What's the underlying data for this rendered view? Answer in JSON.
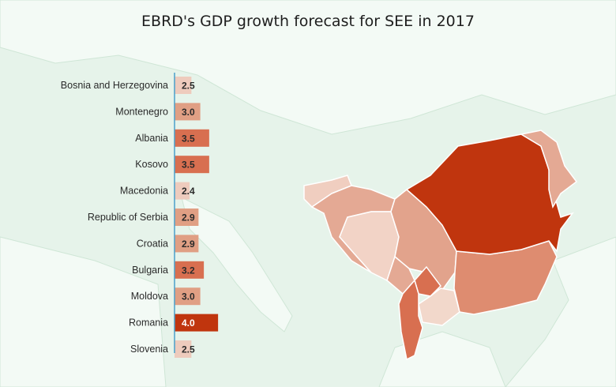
{
  "chart_data": {
    "type": "bar",
    "orientation": "horizontal",
    "title": "EBRD's GDP growth forecast for SEE in 2017",
    "xlabel": "",
    "ylabel": "",
    "xlim": [
      0,
      4.0
    ],
    "categories": [
      "Bosnia and Herzegovina",
      "Montenegro",
      "Albania",
      "Kosovo",
      "Macedonia",
      "Republic of Serbia",
      "Croatia",
      "Bulgaria",
      "Moldova",
      "Romania",
      "Slovenia"
    ],
    "values": [
      2.5,
      3.0,
      3.5,
      3.5,
      2.4,
      2.9,
      2.9,
      3.2,
      3.0,
      4.0,
      2.5
    ],
    "labels": [
      "2.5",
      "3.0",
      "3.5",
      "3.5",
      "2.4",
      "2.9",
      "2.9",
      "3.2",
      "3.0",
      "4.0",
      "2.5"
    ],
    "grid": false,
    "legend": "none",
    "colors": {
      "low": "#eecbbd",
      "mid": "#e09f84",
      "high": "#d86f50",
      "max": "#c0350e",
      "axis": "#4a9fca",
      "background": "#e6f3ea",
      "land": "#f2f9f4"
    }
  }
}
